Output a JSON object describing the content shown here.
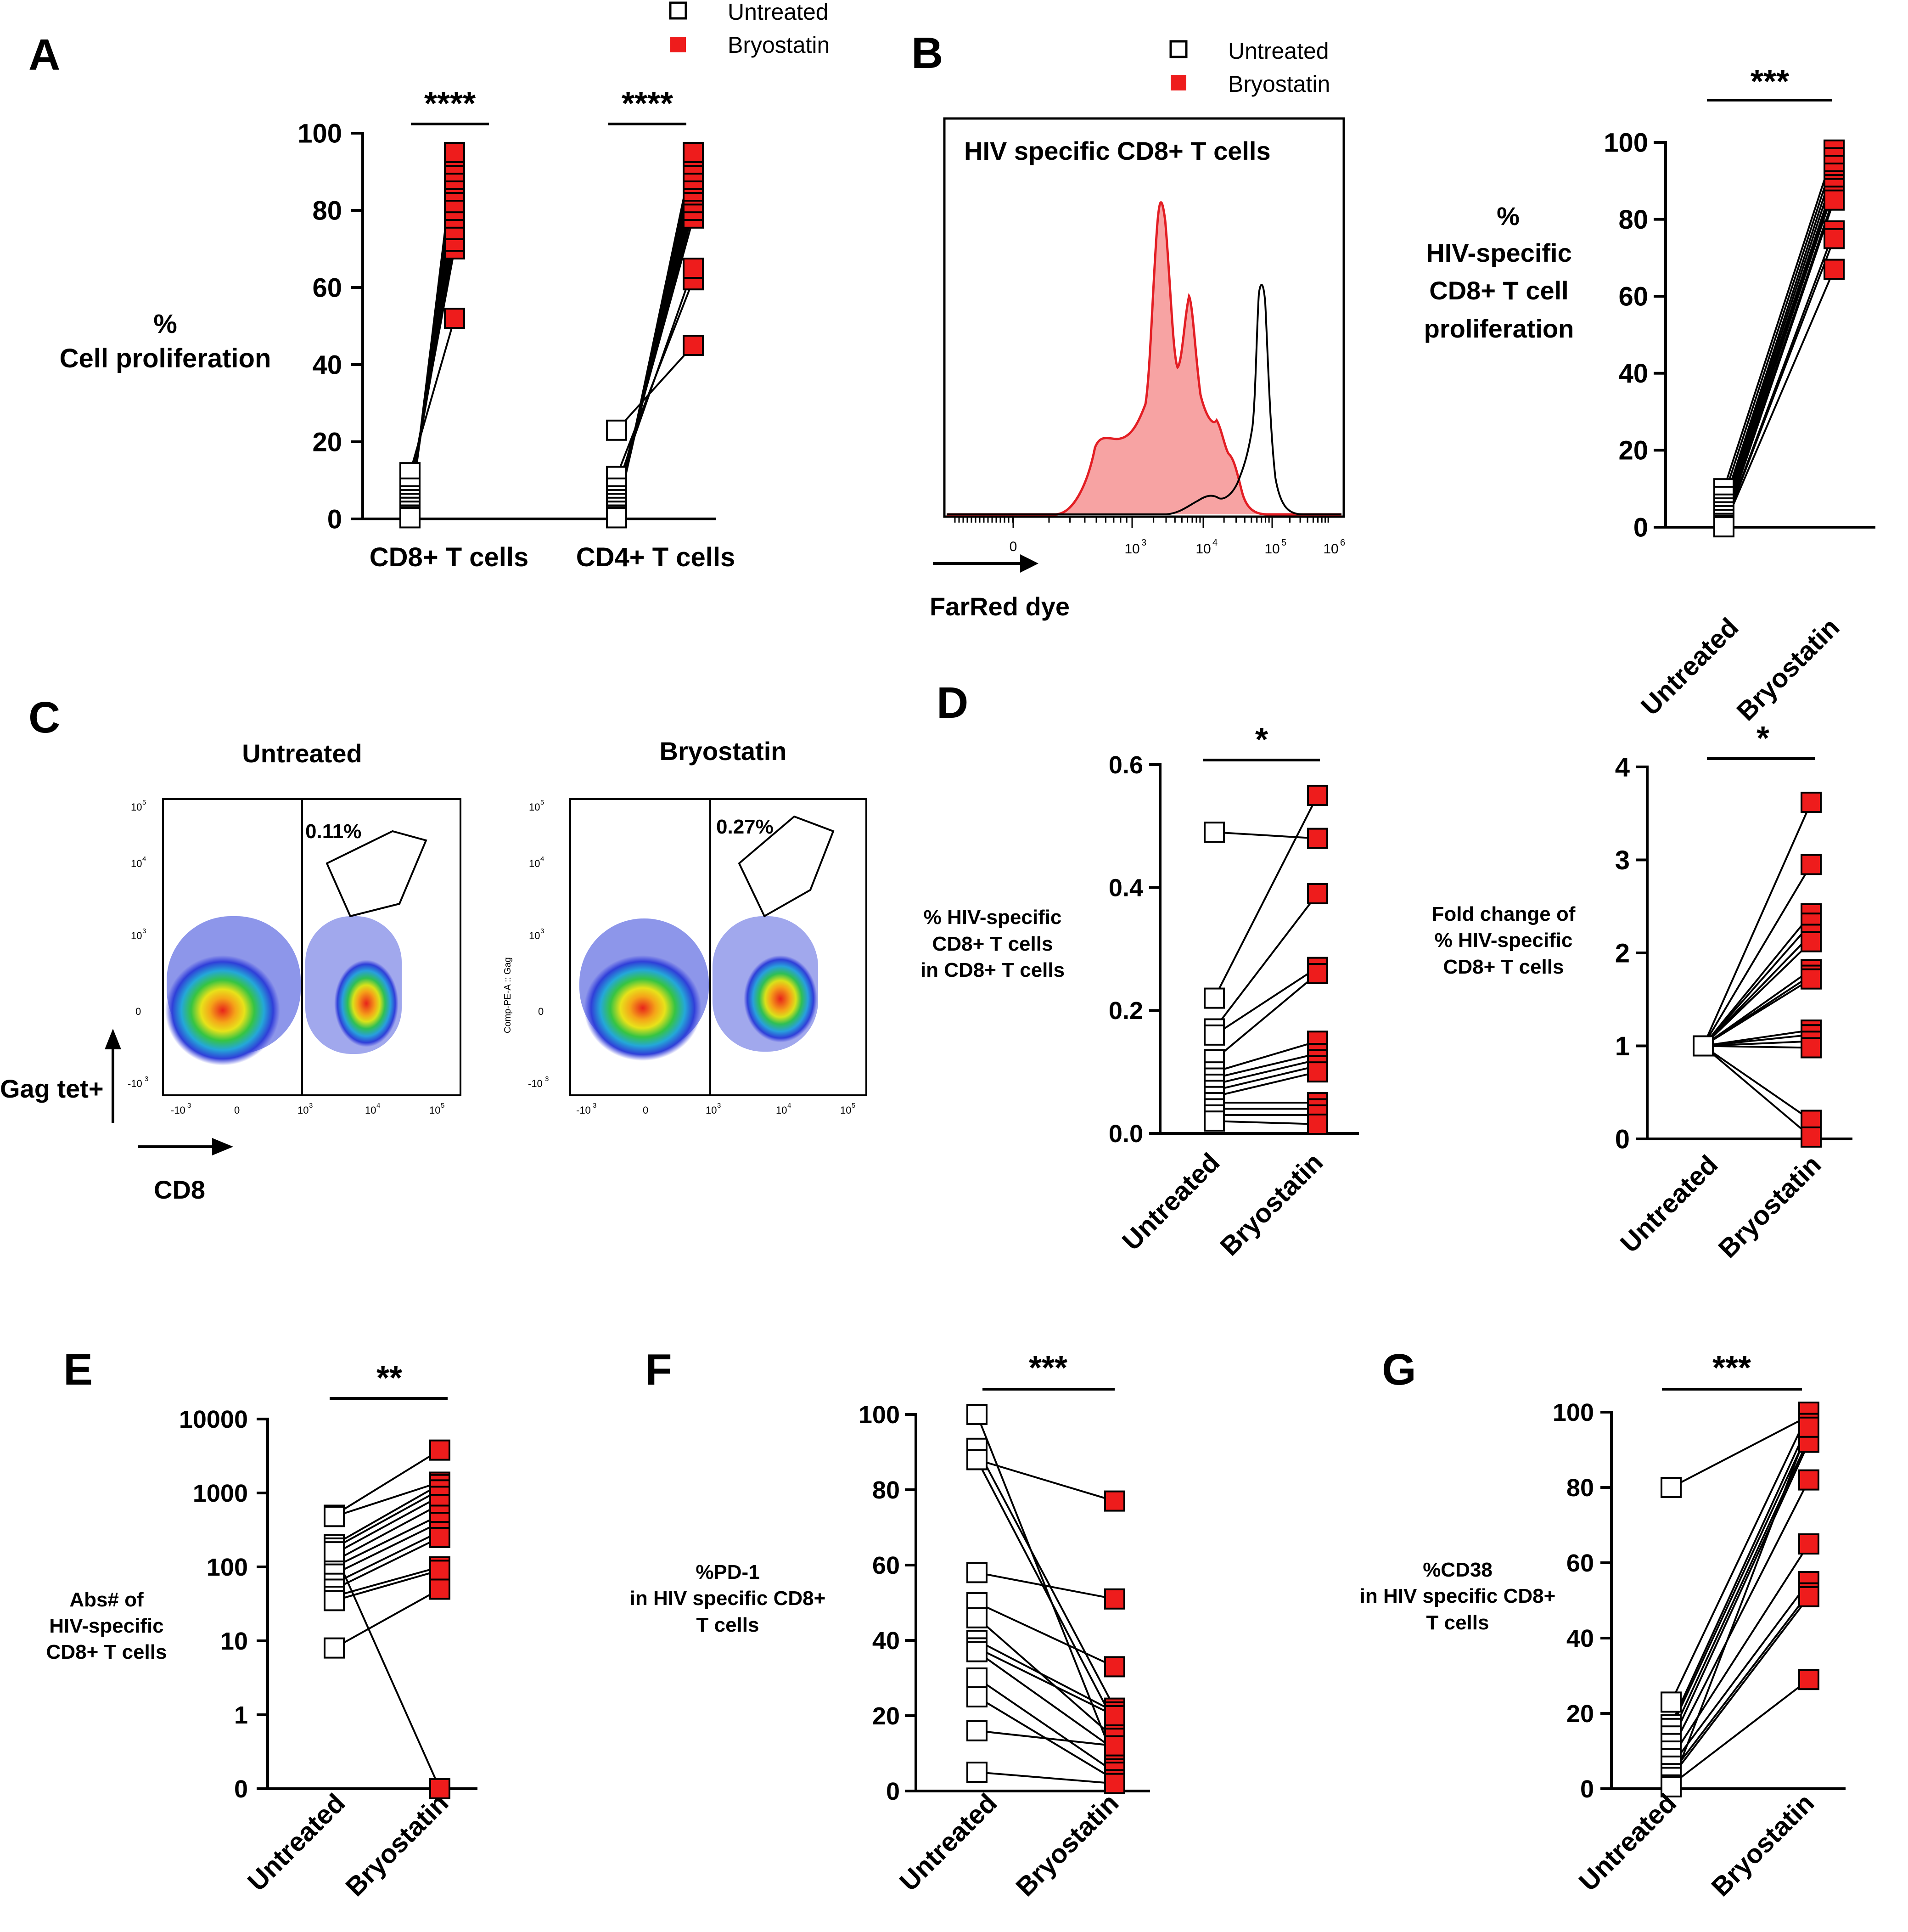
{
  "legend": {
    "untreated_label": "Untreated",
    "bryostatin_label": "Bryostatin",
    "untreated_color": "#ffffff",
    "bryostatin_color": "#ee1c1c"
  },
  "panels": {
    "A": {
      "letter": "A",
      "ylabel_line1": "%",
      "ylabel_line2": "Cell proliferation",
      "group1_label": "CD8+ T cells",
      "group2_label": "CD4+ T cells",
      "sig1": "****",
      "sig2": "****"
    },
    "B": {
      "letter": "B",
      "hist_title": "HIV specific CD8+ T cells",
      "xlabel": "FarRed dye",
      "xticks": [
        "0",
        "10",
        "10",
        "10",
        "10"
      ],
      "xtick_exp": [
        "",
        "3",
        "4",
        "5",
        "6"
      ],
      "ylabel_lines": [
        "%",
        "HIV-specific",
        "CD8+ T cell",
        "proliferation"
      ],
      "sig": "***"
    },
    "C": {
      "letter": "C",
      "title_left": "Untreated",
      "title_right": "Bryostatin",
      "gate_left": "0.11%",
      "gate_right": "0.27%",
      "yaxis_label": "Gag tet+",
      "xaxis_label": "CD8",
      "comp_label": "Comp-PE-A :: Gag"
    },
    "D": {
      "letter": "D",
      "ylabel_left_lines": [
        "% HIV-specific",
        "CD8+ T cells",
        "in CD8+ T cells"
      ],
      "ylabel_right_lines": [
        "Fold change of",
        "% HIV-specific",
        "CD8+ T cells"
      ],
      "sig_left": "*",
      "sig_right": "*"
    },
    "E": {
      "letter": "E",
      "ylabel_lines": [
        "Abs# of",
        "HIV-specific",
        "CD8+ T cells"
      ],
      "sig": "**"
    },
    "F": {
      "letter": "F",
      "ylabel_lines": [
        "%PD-1",
        "in HIV specific CD8+",
        "T cells"
      ],
      "sig": "***"
    },
    "G": {
      "letter": "G",
      "ylabel_lines": [
        "%CD38",
        "in HIV specific CD8+",
        "T cells"
      ],
      "sig": "***"
    },
    "xcat_untreated": "Untreated",
    "xcat_bryostatin": "Bryostatin"
  },
  "chart_data": [
    {
      "id": "A",
      "type": "paired-dot",
      "title": "% Cell proliferation",
      "ylim": [
        0,
        100
      ],
      "yticks": [
        0,
        20,
        40,
        60,
        80,
        100
      ],
      "groups": [
        {
          "name": "CD8+ T cells",
          "untreated": [
            12,
            8,
            6,
            5,
            4,
            3,
            3,
            2,
            2,
            1,
            1,
            0.5,
            0.5,
            0.3
          ],
          "bryostatin": [
            52,
            70,
            72,
            75,
            78,
            80,
            82,
            85,
            87,
            88,
            90,
            92,
            94,
            95
          ]
        },
        {
          "name": "CD4+ T cells",
          "untreated": [
            23,
            11,
            8,
            6,
            5,
            4,
            3,
            2,
            2,
            1,
            1,
            0.5,
            0.5,
            0.3
          ],
          "bryostatin": [
            45,
            62,
            65,
            78,
            80,
            82,
            84,
            85,
            87,
            88,
            90,
            92,
            94,
            95
          ]
        }
      ]
    },
    {
      "id": "B-histogram",
      "type": "histogram",
      "title": "HIV specific CD8+ T cells",
      "xlabel": "FarRed dye",
      "series": [
        {
          "name": "Bryostatin",
          "color": "#ee1c1c",
          "shape": "multi-peak, max near 10^3.4"
        },
        {
          "name": "Untreated",
          "color": "#000000",
          "shape": "single peak near 10^4.8"
        }
      ]
    },
    {
      "id": "B",
      "type": "paired-dot",
      "title": "% HIV-specific CD8+ T cell proliferation",
      "ylim": [
        0,
        100
      ],
      "yticks": [
        0,
        20,
        40,
        60,
        80,
        100
      ],
      "categories": [
        "Untreated",
        "Bryostatin"
      ],
      "pairs": [
        [
          10,
          98
        ],
        [
          8,
          96
        ],
        [
          6,
          94
        ],
        [
          5,
          92
        ],
        [
          4,
          90
        ],
        [
          3,
          89
        ],
        [
          2,
          88
        ],
        [
          1,
          86
        ],
        [
          0.5,
          85
        ],
        [
          0.3,
          77
        ],
        [
          0.2,
          75
        ],
        [
          0.1,
          67
        ]
      ]
    },
    {
      "id": "D-left",
      "type": "paired-dot",
      "title": "% HIV-specific CD8+ T cells in CD8+ T cells",
      "ylim": [
        0,
        0.6
      ],
      "yticks": [
        0.0,
        0.2,
        0.4,
        0.6
      ],
      "categories": [
        "Untreated",
        "Bryostatin"
      ],
      "pairs": [
        [
          0.49,
          0.48
        ],
        [
          0.22,
          0.55
        ],
        [
          0.17,
          0.39
        ],
        [
          0.16,
          0.27
        ],
        [
          0.12,
          0.26
        ],
        [
          0.1,
          0.15
        ],
        [
          0.09,
          0.13
        ],
        [
          0.08,
          0.12
        ],
        [
          0.07,
          0.11
        ],
        [
          0.06,
          0.1
        ],
        [
          0.05,
          0.05
        ],
        [
          0.04,
          0.04
        ],
        [
          0.03,
          0.03
        ],
        [
          0.02,
          0.015
        ]
      ]
    },
    {
      "id": "D-right",
      "type": "paired-dot",
      "title": "Fold change of % HIV-specific CD8+ T cells",
      "ylim": [
        0,
        4
      ],
      "yticks": [
        0,
        1,
        2,
        3,
        4
      ],
      "categories": [
        "Untreated",
        "Bryostatin"
      ],
      "pairs": [
        [
          1,
          3.62
        ],
        [
          1,
          2.95
        ],
        [
          1,
          2.42
        ],
        [
          1,
          2.32
        ],
        [
          1,
          2.2
        ],
        [
          1,
          2.12
        ],
        [
          1,
          1.82
        ],
        [
          1,
          1.76
        ],
        [
          1,
          1.72
        ],
        [
          1,
          1.17
        ],
        [
          1,
          1.12
        ],
        [
          1,
          1.05
        ],
        [
          1,
          0.98
        ],
        [
          1,
          0.2
        ],
        [
          1,
          0.02
        ]
      ]
    },
    {
      "id": "E",
      "type": "paired-dot",
      "yscale": "log",
      "title": "Abs# of HIV-specific CD8+ T cells",
      "yticks": [
        "0",
        "1",
        "10",
        "100",
        "1000",
        "10000"
      ],
      "ytick_values": [
        0,
        1,
        10,
        100,
        1000,
        10000
      ],
      "categories": [
        "Untreated",
        "Bryostatin"
      ],
      "pairs": [
        [
          500,
          3800
        ],
        [
          480,
          1400
        ],
        [
          200,
          1300
        ],
        [
          180,
          1100
        ],
        [
          150,
          900
        ],
        [
          120,
          700
        ],
        [
          100,
          500
        ],
        [
          80,
          400
        ],
        [
          60,
          300
        ],
        [
          50,
          250
        ],
        [
          40,
          100
        ],
        [
          35,
          90
        ],
        [
          8,
          50
        ],
        [
          160,
          0
        ]
      ]
    },
    {
      "id": "F",
      "type": "paired-dot",
      "title": "%PD-1 in HIV specific CD8+ T cells",
      "ylim": [
        0,
        100
      ],
      "yticks": [
        0,
        20,
        40,
        60,
        80,
        100
      ],
      "categories": [
        "Untreated",
        "Bryostatin"
      ],
      "pairs": [
        [
          100,
          8
        ],
        [
          91,
          22
        ],
        [
          88,
          77
        ],
        [
          88,
          18
        ],
        [
          58,
          51
        ],
        [
          50,
          33
        ],
        [
          46,
          14
        ],
        [
          40,
          21
        ],
        [
          38,
          20
        ],
        [
          37,
          11
        ],
        [
          30,
          5
        ],
        [
          25,
          3
        ],
        [
          16,
          12
        ],
        [
          5,
          2
        ]
      ]
    },
    {
      "id": "G",
      "type": "paired-dot",
      "title": "%CD38 in HIV specific CD8+ T cells",
      "ylim": [
        0,
        100
      ],
      "yticks": [
        0,
        20,
        40,
        60,
        80,
        100
      ],
      "categories": [
        "Untreated",
        "Bryostatin"
      ],
      "pairs": [
        [
          80,
          99
        ],
        [
          23,
          100
        ],
        [
          17,
          97
        ],
        [
          16,
          95
        ],
        [
          14,
          93
        ],
        [
          12,
          92
        ],
        [
          10,
          82
        ],
        [
          8,
          65
        ],
        [
          6,
          55
        ],
        [
          4,
          52
        ],
        [
          3,
          51
        ],
        [
          1,
          29
        ],
        [
          0.5,
          96
        ]
      ]
    }
  ]
}
